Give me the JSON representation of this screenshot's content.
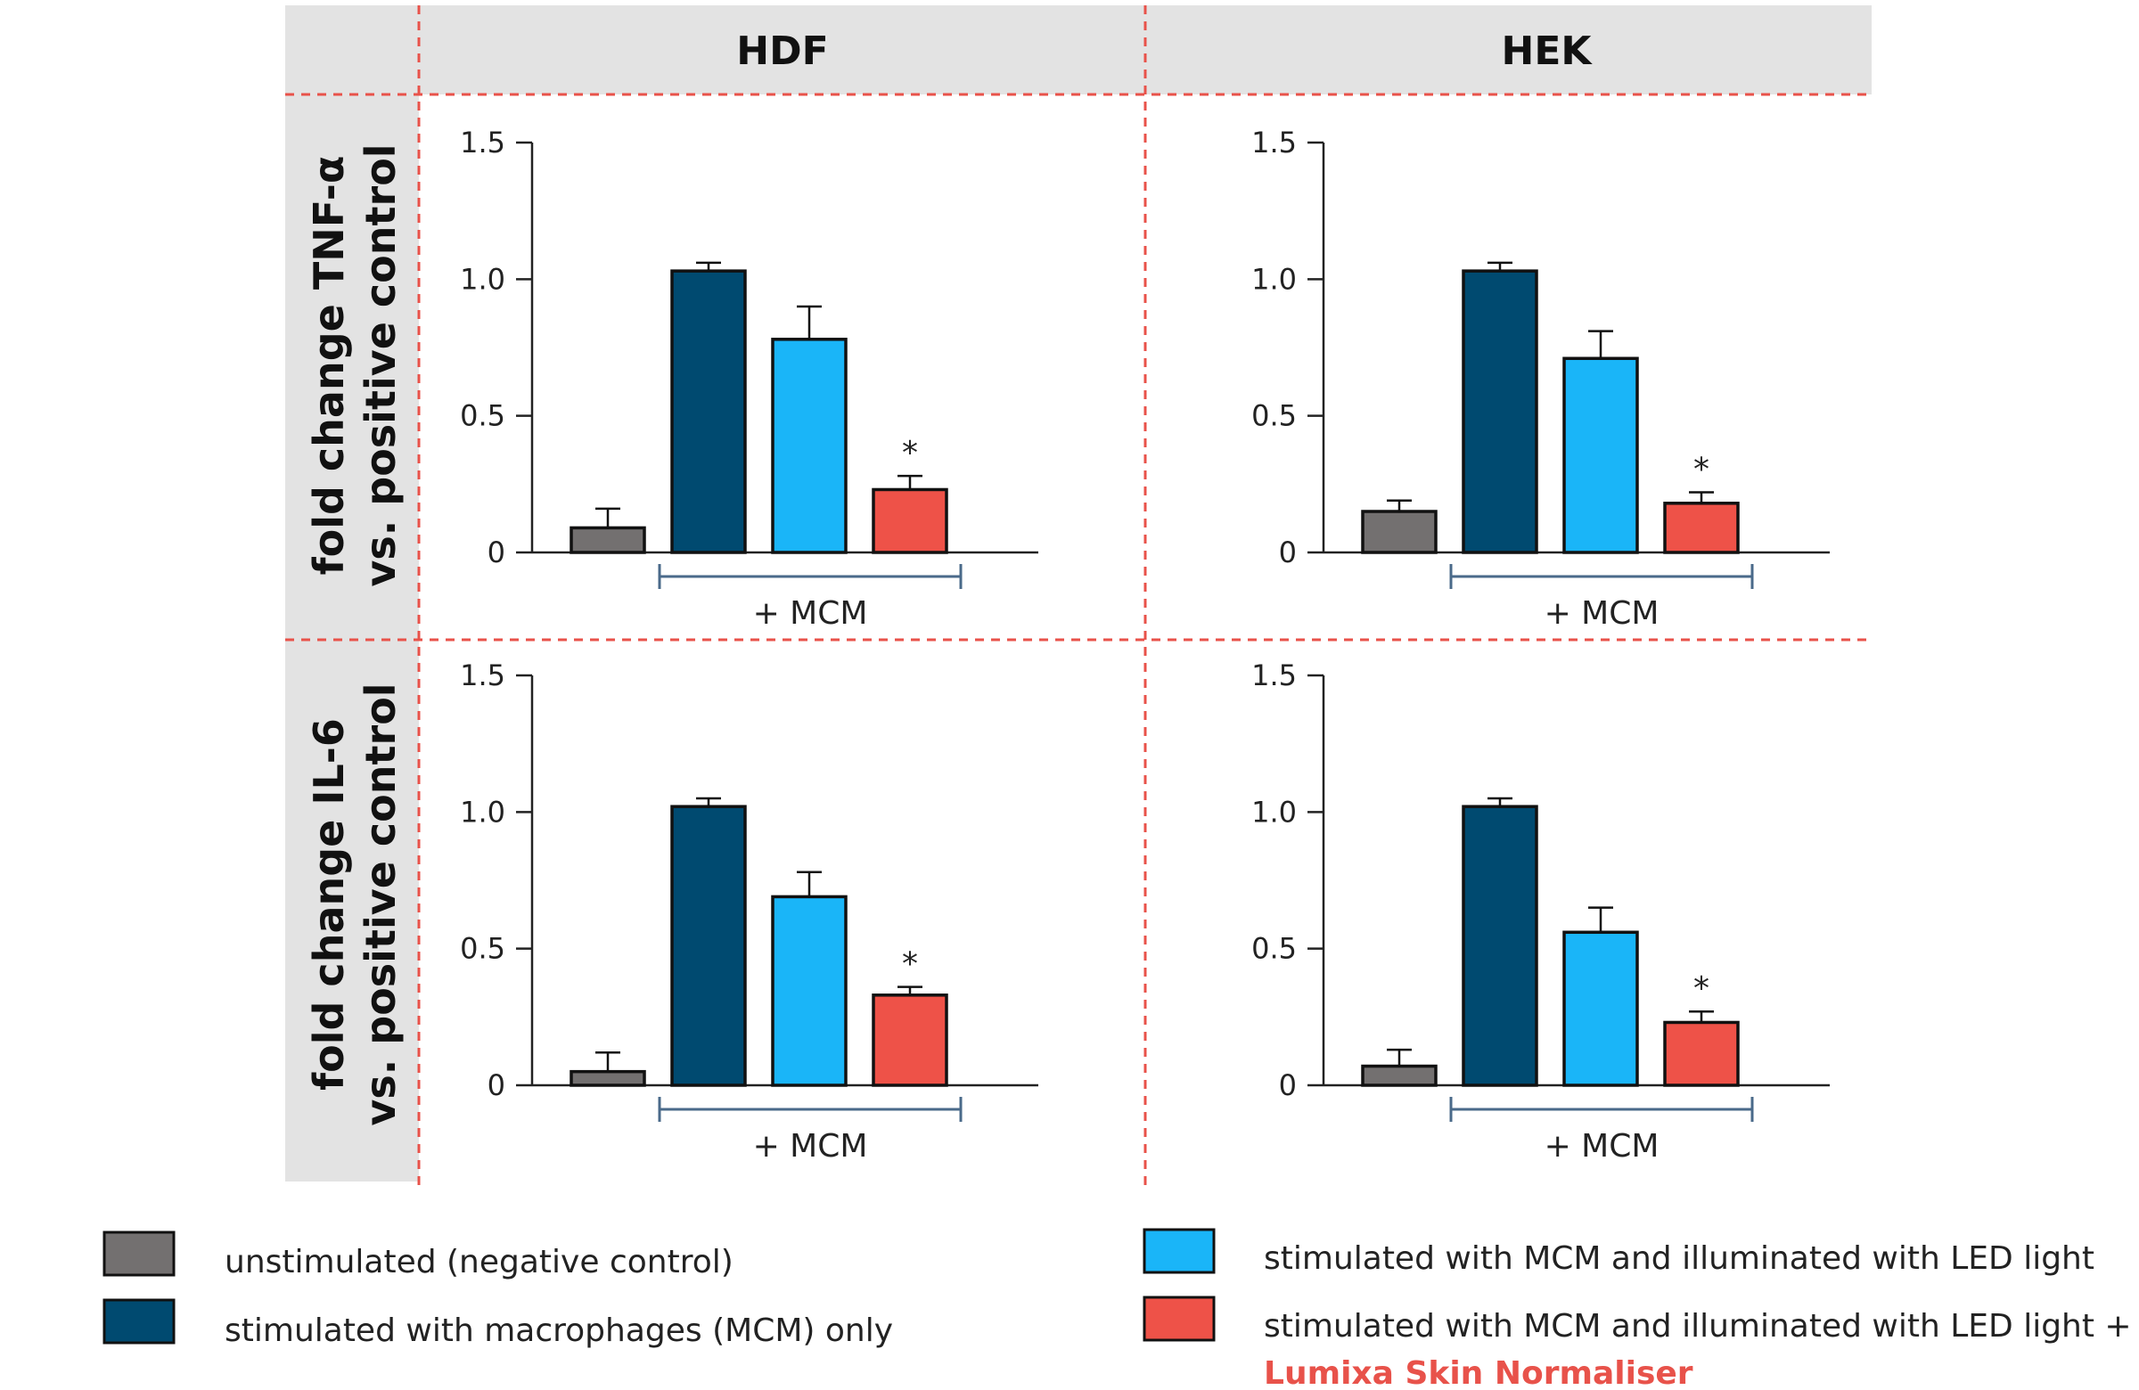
{
  "columns": [
    "HDF",
    "HEK"
  ],
  "row_labels": [
    {
      "line1": "fold change TNF-α",
      "line2": "vs. positive control"
    },
    {
      "line1": "fold change IL-6",
      "line2": "vs. positive control"
    }
  ],
  "colors": {
    "header_bg": "#e3e3e3",
    "divider": "#e8524a",
    "bracket": "#4a6a8a",
    "axis": "#222222",
    "bar_stroke": "#111111",
    "brand_text": "#e8524a"
  },
  "legend": [
    {
      "label": "unstimulated (negative control)",
      "color": "#737070"
    },
    {
      "label": "stimulated with macrophages (MCM) only",
      "color": "#004a70"
    },
    {
      "label": "stimulated with MCM and illuminated with LED light",
      "color": "#1ab5f8"
    },
    {
      "label": "stimulated with MCM and illuminated with LED light +",
      "color": "#ee5248"
    }
  ],
  "legend_brand": "Lumixa Skin Normaliser",
  "chart_data": [
    {
      "type": "bar",
      "panel": "HDF",
      "ylabel": "fold change TNF-α vs. positive control",
      "ylim": [
        0,
        1.5
      ],
      "yticks": [
        "0",
        "0.5",
        "1.0",
        "1.5"
      ],
      "ytick_values": [
        0,
        0.5,
        1.0,
        1.5
      ],
      "bracket_label": "+ MCM",
      "series": [
        {
          "name": "unstimulated (negative control)",
          "value": 0.09,
          "error": 0.07,
          "color": "#737070",
          "significant": false
        },
        {
          "name": "stimulated with macrophages (MCM) only",
          "value": 1.03,
          "error": 0.03,
          "color": "#004a70",
          "significant": false
        },
        {
          "name": "stimulated with MCM and illuminated with LED light",
          "value": 0.78,
          "error": 0.12,
          "color": "#1ab5f8",
          "significant": false
        },
        {
          "name": "stimulated with MCM and illuminated with LED light + Lumixa Skin Normaliser",
          "value": 0.23,
          "error": 0.05,
          "color": "#ee5248",
          "significant": true
        }
      ],
      "significance_mark": "*"
    },
    {
      "type": "bar",
      "panel": "HEK",
      "ylabel": "fold change TNF-α vs. positive control",
      "ylim": [
        0,
        1.5
      ],
      "yticks": [
        "0",
        "0.5",
        "1.0",
        "1.5"
      ],
      "ytick_values": [
        0,
        0.5,
        1.0,
        1.5
      ],
      "bracket_label": "+ MCM",
      "series": [
        {
          "name": "unstimulated (negative control)",
          "value": 0.15,
          "error": 0.04,
          "color": "#737070",
          "significant": false
        },
        {
          "name": "stimulated with macrophages (MCM) only",
          "value": 1.03,
          "error": 0.03,
          "color": "#004a70",
          "significant": false
        },
        {
          "name": "stimulated with MCM and illuminated with LED light",
          "value": 0.71,
          "error": 0.1,
          "color": "#1ab5f8",
          "significant": false
        },
        {
          "name": "stimulated with MCM and illuminated with LED light + Lumixa Skin Normaliser",
          "value": 0.18,
          "error": 0.04,
          "color": "#ee5248",
          "significant": true
        }
      ],
      "significance_mark": "*"
    },
    {
      "type": "bar",
      "panel": "HDF",
      "ylabel": "fold change IL-6 vs. positive control",
      "ylim": [
        0,
        1.5
      ],
      "yticks": [
        "0",
        "0.5",
        "1.0",
        "1.5"
      ],
      "ytick_values": [
        0,
        0.5,
        1.0,
        1.5
      ],
      "bracket_label": "+ MCM",
      "series": [
        {
          "name": "unstimulated (negative control)",
          "value": 0.05,
          "error": 0.07,
          "color": "#737070",
          "significant": false
        },
        {
          "name": "stimulated with macrophages (MCM) only",
          "value": 1.02,
          "error": 0.03,
          "color": "#004a70",
          "significant": false
        },
        {
          "name": "stimulated with MCM and illuminated with LED light",
          "value": 0.69,
          "error": 0.09,
          "color": "#1ab5f8",
          "significant": false
        },
        {
          "name": "stimulated with MCM and illuminated with LED light + Lumixa Skin Normaliser",
          "value": 0.33,
          "error": 0.03,
          "color": "#ee5248",
          "significant": true
        }
      ],
      "significance_mark": "*"
    },
    {
      "type": "bar",
      "panel": "HEK",
      "ylabel": "fold change IL-6 vs. positive control",
      "ylim": [
        0,
        1.5
      ],
      "yticks": [
        "0",
        "0.5",
        "1.0",
        "1.5"
      ],
      "ytick_values": [
        0,
        0.5,
        1.0,
        1.5
      ],
      "bracket_label": "+ MCM",
      "series": [
        {
          "name": "unstimulated (negative control)",
          "value": 0.07,
          "error": 0.06,
          "color": "#737070",
          "significant": false
        },
        {
          "name": "stimulated with macrophages (MCM) only",
          "value": 1.02,
          "error": 0.03,
          "color": "#004a70",
          "significant": false
        },
        {
          "name": "stimulated with MCM and illuminated with LED light",
          "value": 0.56,
          "error": 0.09,
          "color": "#1ab5f8",
          "significant": false
        },
        {
          "name": "stimulated with MCM and illuminated with LED light + Lumixa Skin Normaliser",
          "value": 0.23,
          "error": 0.04,
          "color": "#ee5248",
          "significant": true
        }
      ],
      "significance_mark": "*"
    }
  ]
}
